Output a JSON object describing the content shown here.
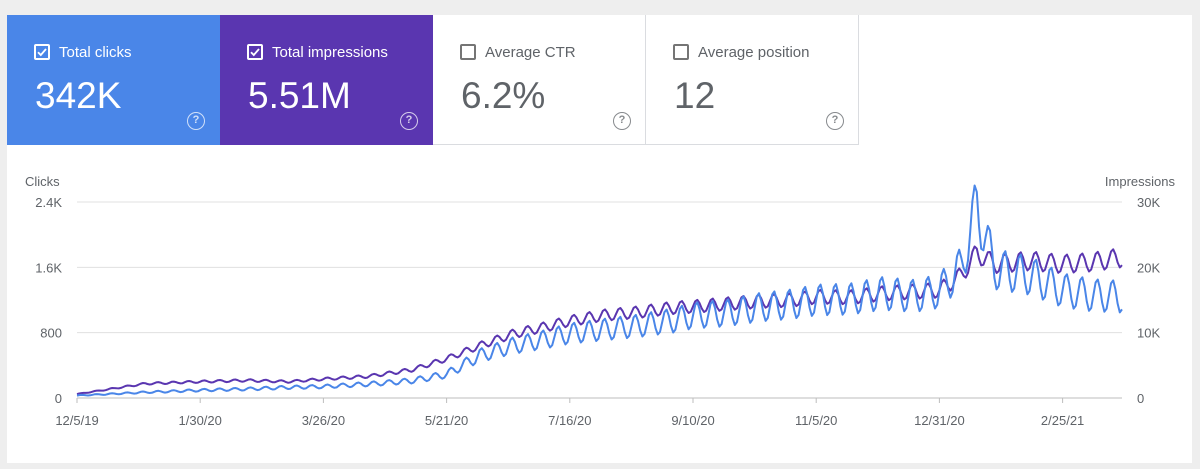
{
  "cards": [
    {
      "label": "Total clicks",
      "value": "342K",
      "checked": true
    },
    {
      "label": "Total impressions",
      "value": "5.51M",
      "checked": true
    },
    {
      "label": "Average CTR",
      "value": "6.2%",
      "checked": false
    },
    {
      "label": "Average position",
      "value": "12",
      "checked": false
    }
  ],
  "colors": {
    "clicks": "#4a86e8",
    "impressions": "#5a36b0",
    "grid": "#e0e0e0",
    "axis_text": "#5f6368"
  },
  "chart_data": {
    "type": "line",
    "left_axis_label": "Clicks",
    "right_axis_label": "Impressions",
    "left_ticks": [
      "2.4K",
      "1.6K",
      "800",
      "0"
    ],
    "right_ticks": [
      "30K",
      "20K",
      "10K",
      "0"
    ],
    "left_ylim": [
      0,
      2400
    ],
    "right_ylim": [
      0,
      30000
    ],
    "x_tick_labels": [
      "12/5/19",
      "1/30/20",
      "3/26/20",
      "5/21/20",
      "7/16/20",
      "9/10/20",
      "11/5/20",
      "12/31/20",
      "2/25/21"
    ],
    "x_range": [
      "2019-12-05",
      "2021-03-24"
    ],
    "series": [
      {
        "name": "Clicks",
        "axis": "left",
        "x": [
          "2019-12-05",
          "2020-01-05",
          "2020-01-30",
          "2020-02-20",
          "2020-03-10",
          "2020-03-26",
          "2020-04-15",
          "2020-05-05",
          "2020-05-21",
          "2020-06-05",
          "2020-06-20",
          "2020-07-05",
          "2020-07-16",
          "2020-08-01",
          "2020-08-15",
          "2020-09-01",
          "2020-09-10",
          "2020-09-25",
          "2020-10-10",
          "2020-10-25",
          "2020-11-05",
          "2020-11-20",
          "2020-12-05",
          "2020-12-20",
          "2020-12-31",
          "2021-01-10",
          "2021-01-17",
          "2021-01-25",
          "2021-02-10",
          "2021-02-25",
          "2021-03-10",
          "2021-03-24"
        ],
        "y": [
          30,
          70,
          95,
          110,
          130,
          140,
          170,
          210,
          290,
          520,
          640,
          720,
          790,
          840,
          880,
          950,
          1010,
          1040,
          1110,
          1150,
          1200,
          1210,
          1280,
          1250,
          1310,
          1600,
          2360,
          1580,
          1500,
          1320,
          1260,
          1240
        ]
      },
      {
        "name": "Impressions",
        "axis": "right",
        "x": [
          "2019-12-05",
          "2020-01-05",
          "2020-01-30",
          "2020-02-20",
          "2020-03-10",
          "2020-03-26",
          "2020-04-15",
          "2020-05-05",
          "2020-05-21",
          "2020-06-05",
          "2020-06-20",
          "2020-07-05",
          "2020-07-16",
          "2020-08-01",
          "2020-08-15",
          "2020-09-01",
          "2020-09-10",
          "2020-09-25",
          "2020-10-10",
          "2020-10-25",
          "2020-11-05",
          "2020-11-20",
          "2020-12-05",
          "2020-12-20",
          "2020-12-31",
          "2021-01-10",
          "2021-01-17",
          "2021-01-25",
          "2021-02-10",
          "2021-02-25",
          "2021-03-10",
          "2021-03-24"
        ],
        "y": [
          600,
          2200,
          2500,
          2700,
          2500,
          2900,
          3300,
          4300,
          6000,
          8000,
          9800,
          10900,
          11800,
          12700,
          13100,
          13800,
          14000,
          14400,
          14800,
          15000,
          15500,
          15400,
          16000,
          16300,
          16500,
          18800,
          22200,
          20500,
          21000,
          20500,
          20800,
          21500
        ]
      }
    ]
  }
}
